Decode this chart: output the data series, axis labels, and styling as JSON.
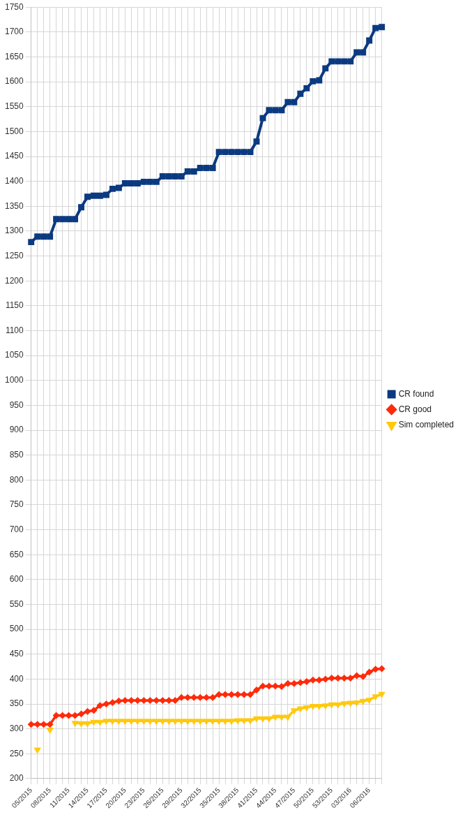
{
  "chart_data": {
    "type": "line",
    "categories": [
      "05/2015",
      null,
      null,
      "08/2015",
      null,
      null,
      "11/2015",
      null,
      null,
      "14/2015",
      null,
      null,
      "17/2015",
      null,
      null,
      "20/2015",
      null,
      null,
      "23/2015",
      null,
      null,
      "26/2015",
      null,
      null,
      "29/2015",
      null,
      null,
      "32/2015",
      null,
      null,
      "35/2015",
      null,
      null,
      "38/2015",
      null,
      null,
      "41/2015",
      null,
      null,
      "44/2015",
      null,
      null,
      "47/2015",
      null,
      null,
      "50/2015",
      null,
      null,
      "53/2015",
      null,
      null,
      "03/2016",
      null,
      null,
      "06/2016",
      null,
      null
    ],
    "series": [
      {
        "name": "CR found",
        "color": "#0b3a80",
        "marker": "square",
        "values": [
          1278,
          1289,
          1289,
          1289,
          1324,
          1324,
          1324,
          1324,
          1348,
          1369,
          1371,
          1371,
          1373,
          1385,
          1387,
          1396,
          1396,
          1396,
          1399,
          1399,
          1399,
          1410,
          1410,
          1410,
          1410,
          1420,
          1420,
          1427,
          1427,
          1427,
          1459,
          1459,
          1459,
          1459,
          1459,
          1459,
          1480,
          1527,
          1543,
          1543,
          1543,
          1559,
          1559,
          1576,
          1587,
          1601,
          1603,
          1627,
          1641,
          1641,
          1641,
          1641,
          1659,
          1659,
          1683,
          1708,
          1710
        ]
      },
      {
        "name": "CR good",
        "color": "#ff2a0a",
        "marker": "diamond",
        "values": [
          309,
          309,
          309,
          309,
          327,
          327,
          327,
          327,
          330,
          335,
          337,
          347,
          350,
          353,
          356,
          357,
          357,
          357,
          357,
          357,
          357,
          357,
          357,
          357,
          363,
          363,
          363,
          363,
          363,
          363,
          369,
          369,
          369,
          369,
          369,
          369,
          378,
          386,
          386,
          386,
          385,
          391,
          391,
          393,
          395,
          398,
          398,
          400,
          402,
          402,
          402,
          402,
          407,
          405,
          414,
          420,
          421
        ]
      },
      {
        "name": "Sim completed",
        "color": "#ffc90e",
        "marker": "triangle",
        "values": [
          null,
          258,
          null,
          298,
          null,
          null,
          null,
          312,
          311,
          311,
          314,
          314,
          316,
          316,
          316,
          316,
          316,
          316,
          316,
          316,
          316,
          316,
          316,
          316,
          316,
          316,
          316,
          316,
          316,
          316,
          316,
          316,
          316,
          317,
          317,
          317,
          321,
          321,
          321,
          324,
          324,
          324,
          337,
          341,
          343,
          346,
          346,
          347,
          349,
          349,
          351,
          352,
          353,
          356,
          358,
          365,
          370
        ]
      }
    ],
    "ylim": [
      200,
      1750
    ],
    "yticks": [
      200,
      250,
      300,
      350,
      400,
      450,
      500,
      550,
      600,
      650,
      700,
      750,
      800,
      850,
      900,
      950,
      1000,
      1050,
      1100,
      1150,
      1200,
      1250,
      1300,
      1350,
      1400,
      1450,
      1500,
      1550,
      1600,
      1650,
      1700,
      1750
    ],
    "grid": true,
    "legend": "right"
  }
}
